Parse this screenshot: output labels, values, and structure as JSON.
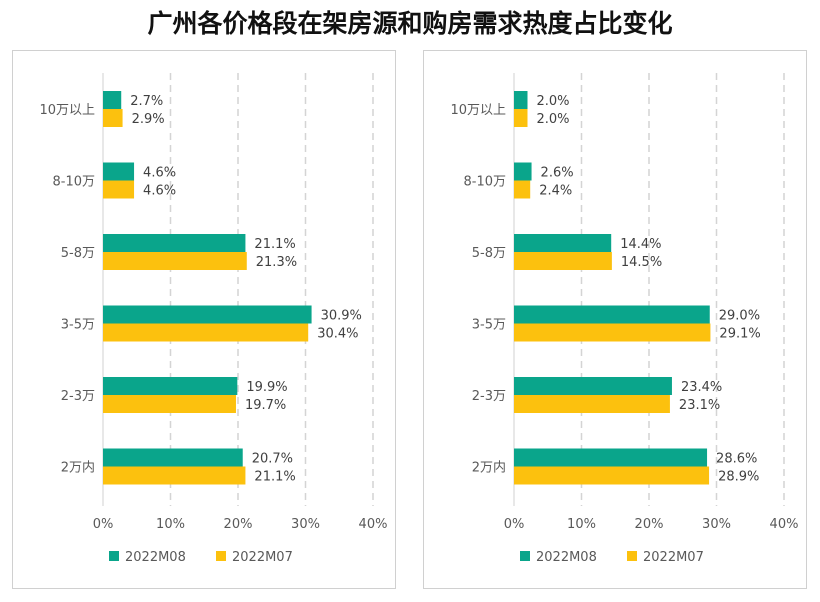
{
  "title": "广州各价格段在架房源和购房需求热度占比变化",
  "colors": {
    "m08": "#0aa58b",
    "m07": "#fcc10e",
    "grid": "#d4d4d4"
  },
  "chart_data": [
    {
      "type": "bar",
      "orientation": "horizontal",
      "categories": [
        "10万以上",
        "8-10万",
        "5-8万",
        "3-5万",
        "2-3万",
        "2万内"
      ],
      "series": [
        {
          "name": "2022M08",
          "values": [
            2.7,
            4.6,
            21.1,
            30.9,
            19.9,
            20.7
          ]
        },
        {
          "name": "2022M07",
          "values": [
            2.9,
            4.6,
            21.3,
            30.4,
            19.7,
            21.1
          ]
        }
      ],
      "xlim": [
        0,
        40
      ],
      "xticks": [
        "0%",
        "10%",
        "20%",
        "30%",
        "40%"
      ],
      "legend": "bottom",
      "grid": true
    },
    {
      "type": "bar",
      "orientation": "horizontal",
      "categories": [
        "10万以上",
        "8-10万",
        "5-8万",
        "3-5万",
        "2-3万",
        "2万内"
      ],
      "series": [
        {
          "name": "2022M08",
          "values": [
            2.0,
            2.6,
            14.4,
            29.0,
            23.4,
            28.6
          ]
        },
        {
          "name": "2022M07",
          "values": [
            2.0,
            2.4,
            14.5,
            29.1,
            23.1,
            28.9
          ]
        }
      ],
      "xlim": [
        0,
        40
      ],
      "xticks": [
        "0%",
        "10%",
        "20%",
        "30%",
        "40%"
      ],
      "legend": "bottom",
      "grid": true
    }
  ]
}
